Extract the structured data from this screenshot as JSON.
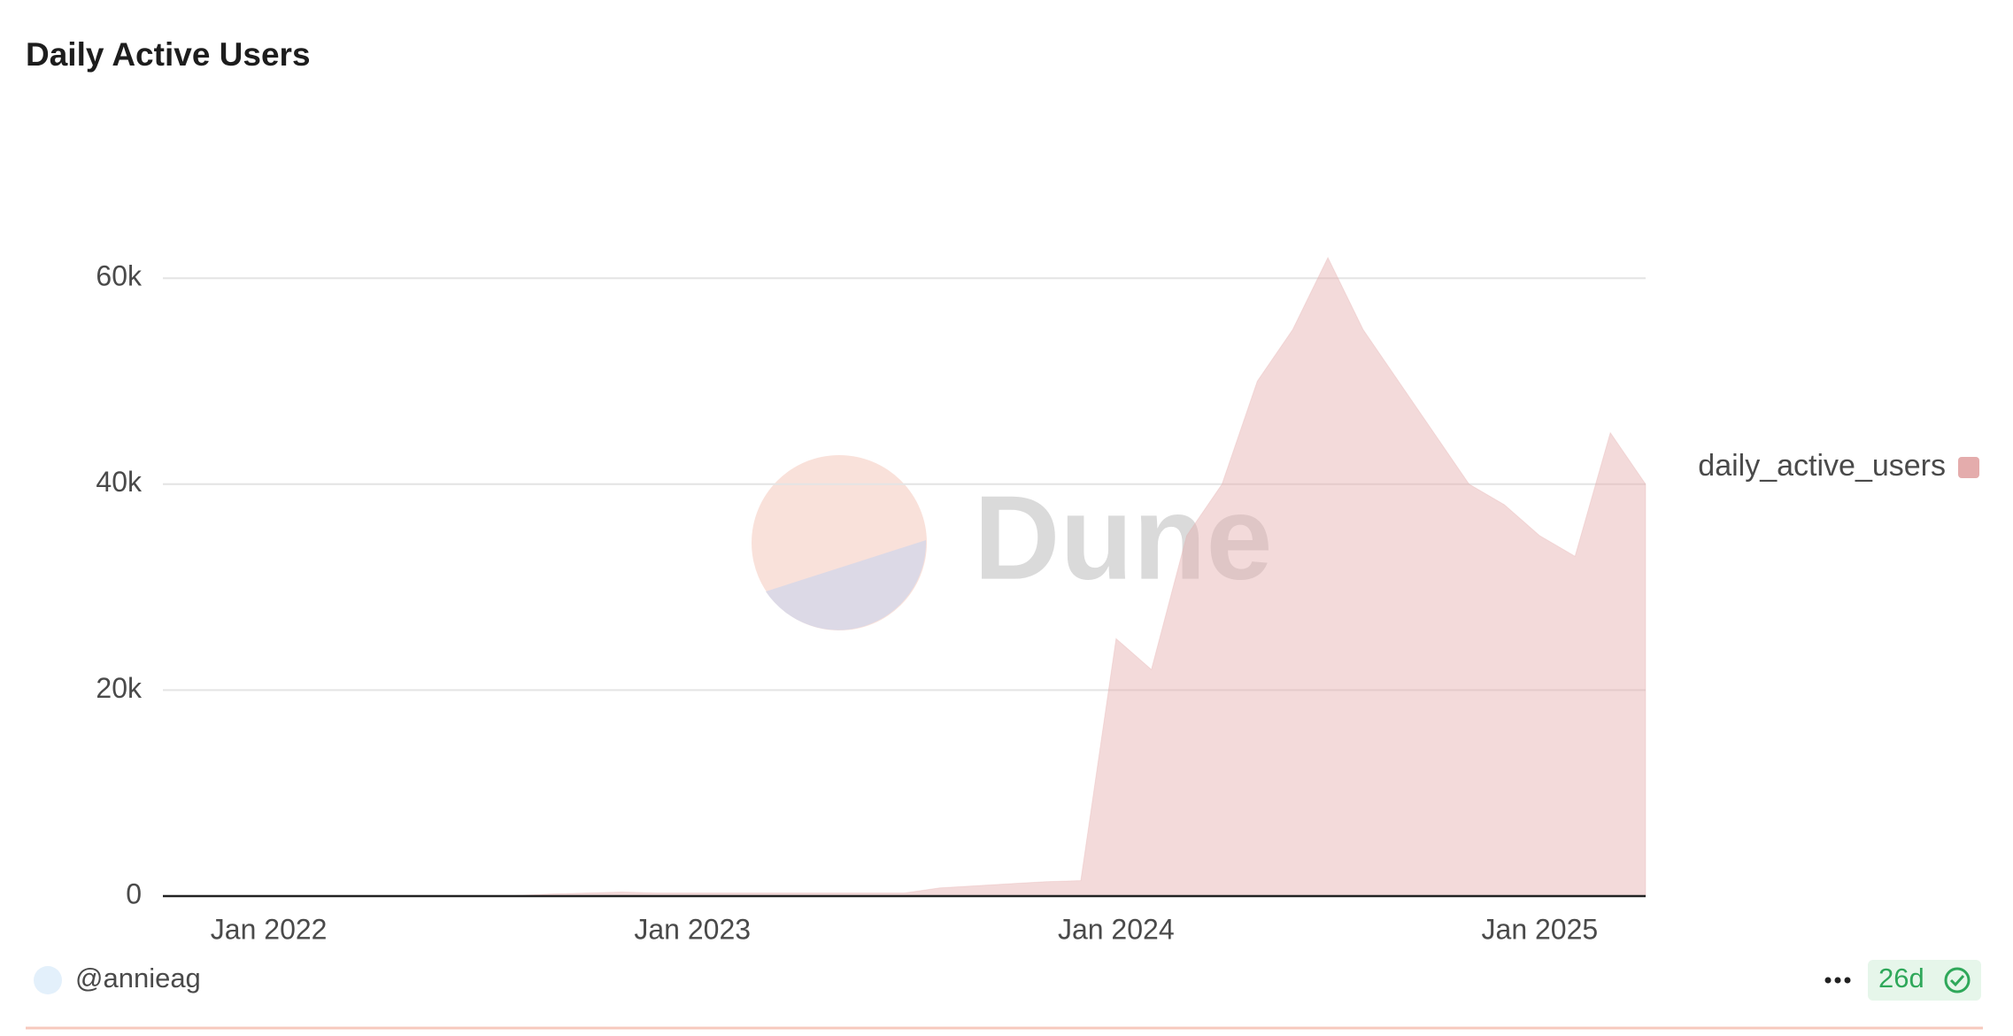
{
  "chart_data": {
    "type": "area",
    "title": "Daily Active Users",
    "x": [
      "2021-10",
      "2021-11",
      "2021-12",
      "2022-01",
      "2022-02",
      "2022-03",
      "2022-04",
      "2022-05",
      "2022-06",
      "2022-07",
      "2022-08",
      "2022-09",
      "2022-10",
      "2022-11",
      "2022-12",
      "2023-01",
      "2023-02",
      "2023-03",
      "2023-04",
      "2023-05",
      "2023-06",
      "2023-07",
      "2023-08",
      "2023-09",
      "2023-10",
      "2023-11",
      "2023-12",
      "2024-01",
      "2024-02",
      "2024-03",
      "2024-04",
      "2024-05",
      "2024-06",
      "2024-07",
      "2024-08",
      "2024-09",
      "2024-10",
      "2024-11",
      "2024-12",
      "2025-01",
      "2025-02",
      "2025-03",
      "2025-04"
    ],
    "series": [
      {
        "name": "daily_active_users",
        "color": "#e4acac",
        "values": [
          0,
          0,
          0,
          0,
          0,
          0,
          0,
          0,
          0,
          0,
          50,
          200,
          300,
          400,
          300,
          300,
          300,
          300,
          300,
          300,
          300,
          300,
          800,
          1000,
          1200,
          1400,
          1500,
          25000,
          22000,
          35000,
          40000,
          50000,
          55000,
          62000,
          55000,
          50000,
          45000,
          40000,
          38000,
          35000,
          33000,
          45000,
          40000
        ]
      }
    ],
    "xlim": [
      "2021-10",
      "2025-04"
    ],
    "xticks": [
      {
        "value": "2022-01",
        "label": "Jan 2022"
      },
      {
        "value": "2023-01",
        "label": "Jan 2023"
      },
      {
        "value": "2024-01",
        "label": "Jan 2024"
      },
      {
        "value": "2025-01",
        "label": "Jan 2025"
      }
    ],
    "ylim": [
      0,
      73000
    ],
    "yticks": [
      0,
      {
        "value": 20000,
        "label": "20k"
      },
      {
        "value": 40000,
        "label": "40k"
      },
      {
        "value": 60000,
        "label": "60k"
      }
    ],
    "grid": true
  },
  "watermark": "Dune",
  "author": "@annieag",
  "age": "26d"
}
